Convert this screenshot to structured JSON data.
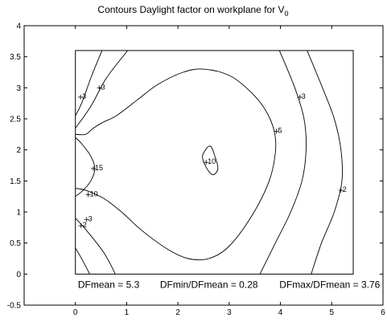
{
  "chart_data": {
    "type": "contour",
    "title": "Contours Daylight factor on workplane  for V",
    "title_subscript": "0",
    "xlim": [
      -1,
      6
    ],
    "ylim": [
      -0.5,
      4
    ],
    "x_ticks": [
      0,
      1,
      2,
      3,
      4,
      5,
      6
    ],
    "y_ticks": [
      -0.5,
      0,
      0.5,
      1,
      1.5,
      2,
      2.5,
      3,
      3.5,
      4
    ],
    "x_tick_labels": [
      "0",
      "1",
      "2",
      "3",
      "4",
      "5",
      "6"
    ],
    "y_tick_labels": [
      "-0.5",
      "0",
      "0.5",
      "1",
      "1.5",
      "2",
      "2.5",
      "3",
      "3.5",
      "4"
    ],
    "grid": false,
    "workplane_rect": {
      "x": [
        0,
        5.42
      ],
      "y": [
        0,
        3.6
      ]
    },
    "contours": [
      {
        "level": "2",
        "points": [
          [
            0.0,
            2.55
          ],
          [
            0.12,
            2.75
          ],
          [
            0.32,
            3.2
          ],
          [
            0.52,
            3.6
          ]
        ]
      },
      {
        "level": "3",
        "points": [
          [
            0.0,
            2.35
          ],
          [
            0.3,
            2.7
          ],
          [
            0.6,
            3.15
          ],
          [
            1.02,
            3.6
          ]
        ]
      },
      {
        "level": "2",
        "points": [
          [
            0.0,
            0.42
          ],
          [
            0.1,
            0.28
          ],
          [
            0.28,
            0.0
          ]
        ]
      },
      {
        "level": "3",
        "points": [
          [
            0.0,
            0.9
          ],
          [
            0.2,
            0.72
          ],
          [
            0.55,
            0.35
          ],
          [
            0.78,
            0.0
          ]
        ]
      },
      {
        "level": "15",
        "points": [
          [
            0.0,
            2.2
          ],
          [
            0.12,
            2.1
          ],
          [
            0.3,
            1.9
          ],
          [
            0.38,
            1.7
          ],
          [
            0.3,
            1.5
          ],
          [
            0.15,
            1.35
          ],
          [
            0.0,
            1.25
          ]
        ]
      },
      {
        "level": "10",
        "points": [
          [
            0.0,
            2.25
          ],
          [
            0.2,
            2.25
          ],
          [
            0.35,
            2.35
          ],
          [
            0.55,
            2.45
          ],
          [
            0.8,
            2.55
          ],
          [
            1.2,
            2.8
          ],
          [
            1.6,
            3.05
          ],
          [
            2.1,
            3.25
          ],
          [
            2.5,
            3.3
          ],
          [
            3.0,
            3.2
          ],
          [
            3.4,
            2.95
          ],
          [
            3.7,
            2.65
          ],
          [
            3.88,
            2.3
          ],
          [
            3.9,
            1.95
          ],
          [
            3.78,
            1.5
          ],
          [
            3.45,
            0.95
          ],
          [
            3.0,
            0.45
          ],
          [
            2.6,
            0.25
          ],
          [
            2.2,
            0.25
          ],
          [
            1.8,
            0.4
          ],
          [
            1.3,
            0.7
          ],
          [
            0.9,
            1.0
          ],
          [
            0.55,
            1.22
          ],
          [
            0.2,
            1.35
          ],
          [
            0.0,
            1.38
          ]
        ]
      },
      {
        "level": "10",
        "points": [
          [
            2.58,
            2.05
          ],
          [
            2.48,
            1.9
          ],
          [
            2.55,
            1.72
          ],
          [
            2.68,
            1.6
          ],
          [
            2.78,
            1.7
          ],
          [
            2.72,
            1.9
          ],
          [
            2.65,
            2.05
          ],
          [
            2.58,
            2.05
          ]
        ]
      },
      {
        "level": "3",
        "points": [
          [
            3.98,
            3.6
          ],
          [
            4.28,
            3.0
          ],
          [
            4.46,
            2.5
          ],
          [
            4.5,
            2.0
          ],
          [
            4.42,
            1.5
          ],
          [
            4.2,
            1.0
          ],
          [
            3.9,
            0.5
          ],
          [
            3.6,
            0.0
          ]
        ]
      },
      {
        "level": "2",
        "points": [
          [
            4.52,
            3.6
          ],
          [
            4.82,
            3.0
          ],
          [
            5.05,
            2.5
          ],
          [
            5.18,
            2.0
          ],
          [
            5.2,
            1.5
          ],
          [
            5.05,
            1.0
          ],
          [
            4.8,
            0.5
          ],
          [
            4.6,
            0.0
          ]
        ]
      }
    ],
    "contour_labels": [
      {
        "text": "3",
        "x": 0.1,
        "y": 2.85
      },
      {
        "text": "3",
        "x": 0.47,
        "y": 3.0
      },
      {
        "text": "15",
        "x": 0.35,
        "y": 1.7
      },
      {
        "text": "10",
        "x": 0.25,
        "y": 1.28
      },
      {
        "text": "3",
        "x": 0.22,
        "y": 0.88
      },
      {
        "text": "2",
        "x": 0.11,
        "y": 0.78
      },
      {
        "text": "10",
        "x": 2.55,
        "y": 1.8
      },
      {
        "text": "5",
        "x": 3.92,
        "y": 2.3
      },
      {
        "text": "3",
        "x": 4.38,
        "y": 2.85
      },
      {
        "text": "2",
        "x": 5.18,
        "y": 1.35
      }
    ],
    "annotations": [
      {
        "text": "DFmean =  5.3",
        "x": 0.05,
        "y": -0.22
      },
      {
        "text": "DFmin/DFmean = 0.28",
        "x": 1.65,
        "y": -0.22
      },
      {
        "text": "DFmax/DFmean =  3.76",
        "x": 3.98,
        "y": -0.22
      }
    ]
  }
}
